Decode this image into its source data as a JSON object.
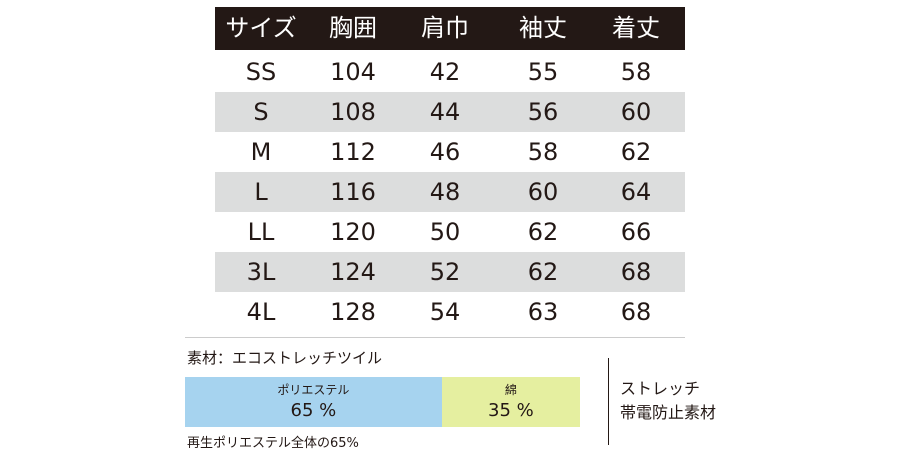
{
  "table": {
    "header": [
      "サイズ",
      "胸囲",
      "肩巾",
      "袖丈",
      "着丈"
    ],
    "rows": [
      [
        "SS",
        "104",
        "42",
        "55",
        "58"
      ],
      [
        "S",
        "108",
        "44",
        "56",
        "60"
      ],
      [
        "M",
        "112",
        "46",
        "58",
        "62"
      ],
      [
        "L",
        "116",
        "48",
        "60",
        "64"
      ],
      [
        "LL",
        "120",
        "50",
        "62",
        "66"
      ],
      [
        "3L",
        "124",
        "52",
        "62",
        "68"
      ],
      [
        "4L",
        "128",
        "54",
        "63",
        "68"
      ]
    ]
  },
  "material": {
    "title": "素材：エコストレッチツイル",
    "parts": [
      {
        "name": "ポリエステル",
        "value": 65,
        "label": "65 %",
        "color": "#a6d3ef"
      },
      {
        "name": "綿",
        "value": 35,
        "label": "35 %",
        "color": "#e5efa0"
      }
    ],
    "note": "再生ポリエステル全体の65%",
    "features": [
      "ストレッチ",
      "帯電防止素材"
    ]
  }
}
